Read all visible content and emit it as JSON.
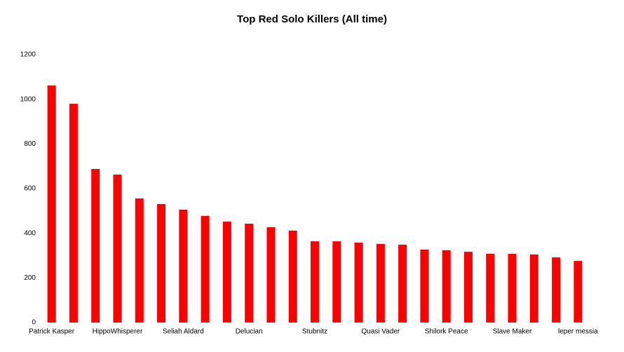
{
  "chart_data": {
    "type": "bar",
    "title": "Top Red Solo Killers (All time)",
    "categories": [
      "Patrick Kasper",
      null,
      null,
      "HippoWhisperer",
      null,
      null,
      "Seliah Aldard",
      null,
      null,
      "Delucian",
      null,
      null,
      "Stubnitz",
      null,
      null,
      "Quasi Vader",
      null,
      null,
      "Shilork Peace",
      null,
      null,
      "Slave Maker",
      null,
      null,
      "leper messia"
    ],
    "values": [
      1062,
      980,
      688,
      663,
      556,
      531,
      506,
      478,
      452,
      443,
      427,
      412,
      364,
      364,
      358,
      352,
      349,
      327,
      324,
      317,
      308,
      308,
      305,
      292,
      276
    ],
    "color": "#ff0000",
    "ylim": [
      0,
      1200
    ],
    "yticks": [
      0,
      200,
      400,
      600,
      800,
      1000,
      1200
    ],
    "grid": false
  }
}
